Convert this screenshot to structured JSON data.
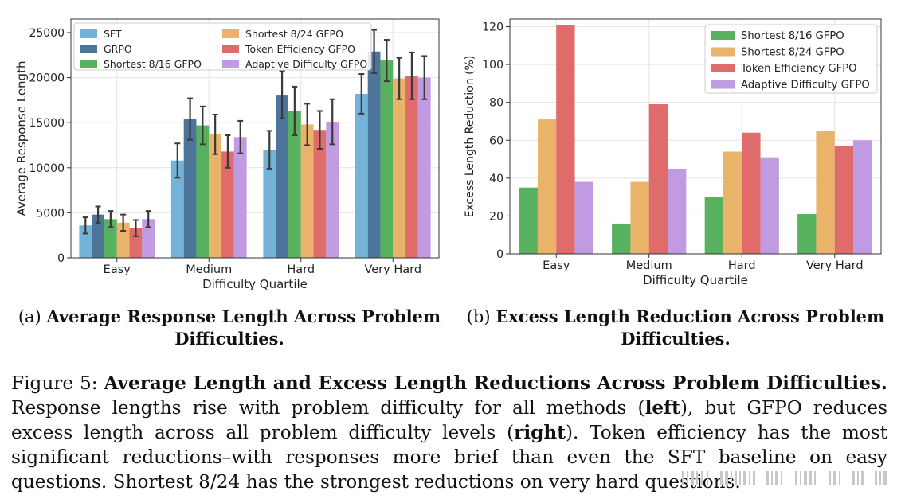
{
  "chart_data": [
    {
      "type": "bar",
      "title": "",
      "xlabel": "Difficulty Quartile",
      "ylabel": "Average Response Length",
      "ylim": [
        0,
        26500
      ],
      "yticks": [
        0,
        5000,
        10000,
        15000,
        20000,
        25000
      ],
      "categories": [
        "Easy",
        "Medium",
        "Hard",
        "Very Hard"
      ],
      "grid": true,
      "legend": "top-left, 2 columns",
      "error_bars": true,
      "series": [
        {
          "name": "SFT",
          "color": "#74b3d8",
          "values": [
            3600,
            10800,
            12000,
            18200
          ],
          "err": [
            900,
            1900,
            2100,
            2200
          ]
        },
        {
          "name": "GRPO",
          "color": "#4d7599",
          "values": [
            4800,
            15400,
            18100,
            22900
          ],
          "err": [
            900,
            2300,
            2600,
            2400
          ]
        },
        {
          "name": "Shortest 8/16 GFPO",
          "color": "#58b15e",
          "values": [
            4300,
            14700,
            16300,
            21900
          ],
          "err": [
            900,
            2100,
            2700,
            2300
          ]
        },
        {
          "name": "Shortest 8/24 GFPO",
          "color": "#e9b36a",
          "values": [
            3900,
            13700,
            14800,
            19900
          ],
          "err": [
            900,
            2200,
            2300,
            2300
          ]
        },
        {
          "name": "Token Efficiency GFPO",
          "color": "#e06b6b",
          "values": [
            3300,
            11800,
            14200,
            20200
          ],
          "err": [
            900,
            1800,
            2100,
            2600
          ]
        },
        {
          "name": "Adaptive Difficulty GFPO",
          "color": "#c09be2",
          "values": [
            4300,
            13400,
            15100,
            20000
          ],
          "err": [
            900,
            1800,
            2500,
            2400
          ]
        }
      ]
    },
    {
      "type": "bar",
      "title": "",
      "xlabel": "Difficulty Quartile",
      "ylabel": "Excess Length Reduction (%)",
      "ylim": [
        0,
        124
      ],
      "yticks": [
        0,
        20,
        40,
        60,
        80,
        100,
        120
      ],
      "categories": [
        "Easy",
        "Medium",
        "Hard",
        "Very Hard"
      ],
      "grid": true,
      "legend": "top-right",
      "series": [
        {
          "name": "Shortest 8/16 GFPO",
          "color": "#58b15e",
          "values": [
            35,
            16,
            30,
            21
          ]
        },
        {
          "name": "Shortest 8/24 GFPO",
          "color": "#e9b36a",
          "values": [
            71,
            38,
            54,
            65
          ]
        },
        {
          "name": "Token Efficiency GFPO",
          "color": "#e06b6b",
          "values": [
            121,
            79,
            64,
            57
          ]
        },
        {
          "name": "Adaptive Difficulty GFPO",
          "color": "#c09be2",
          "values": [
            38,
            45,
            51,
            60
          ]
        }
      ]
    }
  ],
  "subcaptions": {
    "a": {
      "label": "(a)",
      "bold": "Average Response Length Across Problem Difficulties."
    },
    "b": {
      "label": "(b)",
      "bold": "Excess Length Reduction Across Problem Difficulties."
    }
  },
  "caption": {
    "prefix": "Figure 5:",
    "title": "Average Length and Excess Length Reductions Across Problem Difficulties.",
    "t1": "Response lengths rise with problem difficulty for all methods (",
    "b1": "left",
    "t2": "), but GFPO reduces excess length across all problem difficulty levels (",
    "b2": "right",
    "t3": "). Token efficiency has the most significant reductions–with responses more brief than even the SFT baseline on easy questions. Shortest 8/24 has the strongest reductions on very hard questions."
  }
}
